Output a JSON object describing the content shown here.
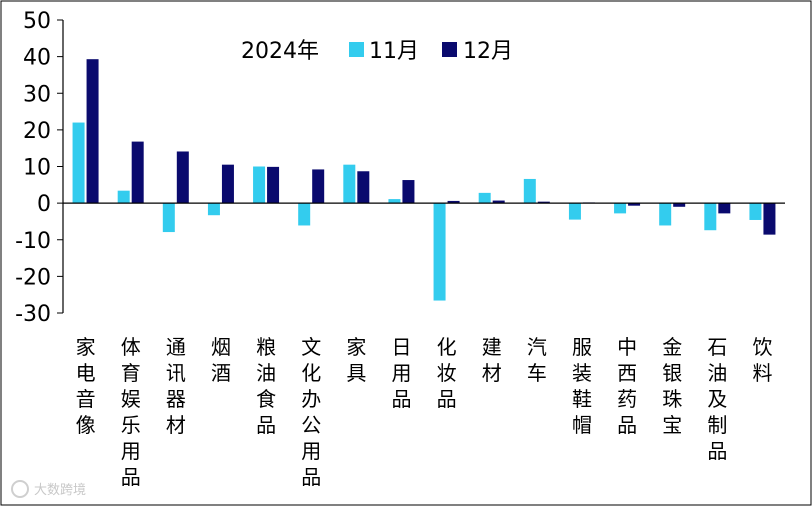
{
  "chart_data": {
    "type": "bar",
    "title": "",
    "xlabel": "",
    "ylabel": "",
    "ylim": [
      -30,
      50
    ],
    "y_ticks": [
      50,
      40,
      30,
      20,
      10,
      0,
      -10,
      -20,
      -30
    ],
    "grid": false,
    "legend_title": "2024年",
    "legend_position": "top-center",
    "categories": [
      "家电音像",
      "体育娱乐用品",
      "通讯器材",
      "烟酒",
      "粮油食品",
      "文化办公用品",
      "家具",
      "日用品",
      "化妆品",
      "建材",
      "汽车",
      "服装鞋帽",
      "中西药品",
      "金银珠宝",
      "石油及制品",
      "饮料"
    ],
    "series": [
      {
        "name": "11月",
        "color": "#33CCEE",
        "values": [
          22,
          3.4,
          -7.9,
          -3.3,
          10,
          -6.1,
          10.5,
          1.1,
          -26.6,
          2.8,
          6.6,
          -4.5,
          -2.8,
          -6.1,
          -7.4,
          -4.6
        ]
      },
      {
        "name": "12月",
        "color": "#0A0A6E",
        "values": [
          39.3,
          16.8,
          14.1,
          10.5,
          9.9,
          9.2,
          8.7,
          6.3,
          0.6,
          0.7,
          0.4,
          0.2,
          -0.7,
          -1.0,
          -2.8,
          -8.6
        ]
      }
    ]
  },
  "watermark": "大数跨境"
}
